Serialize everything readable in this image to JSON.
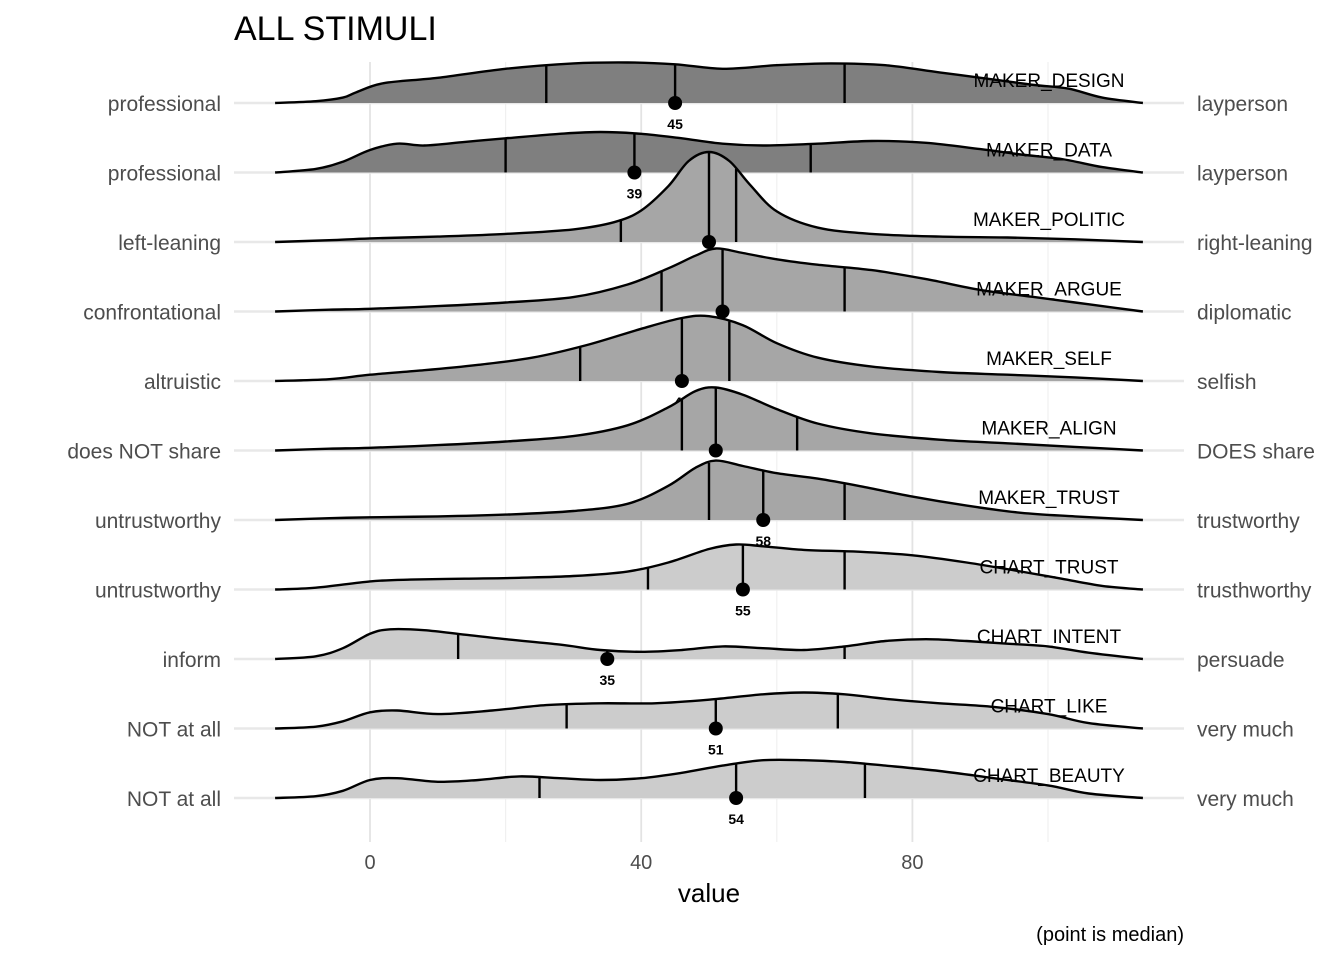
{
  "chart_data": {
    "type": "ridgeline",
    "title": "ALL STIMULI",
    "xlabel": "value",
    "caption": "(point is median)",
    "xlim": [
      -14,
      114
    ],
    "x_ticks": [
      0,
      40,
      80
    ],
    "x_grid_major": [
      0,
      40,
      80
    ],
    "x_grid_minor": [
      20,
      60,
      100
    ],
    "series": [
      {
        "name": "MAKER_DESIGN",
        "left_label": "professional",
        "right_label": "layperson",
        "median": 45,
        "quartiles": [
          26,
          45,
          70
        ],
        "fill": "#7f7f7f",
        "density": [
          [
            -14,
            0
          ],
          [
            -8,
            0.02
          ],
          [
            -4,
            0.06
          ],
          [
            -2,
            0.12
          ],
          [
            2,
            0.22
          ],
          [
            10,
            0.28
          ],
          [
            20,
            0.38
          ],
          [
            30,
            0.44
          ],
          [
            38,
            0.45
          ],
          [
            45,
            0.43
          ],
          [
            52,
            0.38
          ],
          [
            60,
            0.42
          ],
          [
            68,
            0.44
          ],
          [
            76,
            0.42
          ],
          [
            84,
            0.34
          ],
          [
            92,
            0.26
          ],
          [
            98,
            0.2
          ],
          [
            103,
            0.16
          ],
          [
            108,
            0.06
          ],
          [
            114,
            0
          ]
        ]
      },
      {
        "name": "MAKER_DATA",
        "left_label": "professional",
        "right_label": "layperson",
        "median": 39,
        "quartiles": [
          20,
          39,
          65
        ],
        "fill": "#7f7f7f",
        "density": [
          [
            -14,
            0
          ],
          [
            -8,
            0.04
          ],
          [
            -4,
            0.12
          ],
          [
            0,
            0.25
          ],
          [
            4,
            0.32
          ],
          [
            8,
            0.3
          ],
          [
            14,
            0.34
          ],
          [
            20,
            0.38
          ],
          [
            28,
            0.43
          ],
          [
            34,
            0.45
          ],
          [
            40,
            0.43
          ],
          [
            46,
            0.38
          ],
          [
            52,
            0.32
          ],
          [
            58,
            0.3
          ],
          [
            66,
            0.32
          ],
          [
            74,
            0.35
          ],
          [
            82,
            0.33
          ],
          [
            90,
            0.26
          ],
          [
            96,
            0.2
          ],
          [
            102,
            0.15
          ],
          [
            108,
            0.06
          ],
          [
            114,
            0
          ]
        ]
      },
      {
        "name": "MAKER_POLITIC",
        "left_label": "left-leaning",
        "right_label": "right-leaning",
        "median": 50,
        "quartiles": [
          37,
          50,
          54
        ],
        "fill": "#a6a6a6",
        "density": [
          [
            -14,
            0
          ],
          [
            -6,
            0.02
          ],
          [
            0,
            0.04
          ],
          [
            10,
            0.06
          ],
          [
            20,
            0.09
          ],
          [
            30,
            0.14
          ],
          [
            36,
            0.22
          ],
          [
            40,
            0.35
          ],
          [
            44,
            0.62
          ],
          [
            47,
            0.9
          ],
          [
            50,
            1.0
          ],
          [
            53,
            0.9
          ],
          [
            56,
            0.64
          ],
          [
            60,
            0.34
          ],
          [
            66,
            0.16
          ],
          [
            74,
            0.09
          ],
          [
            84,
            0.06
          ],
          [
            94,
            0.05
          ],
          [
            104,
            0.03
          ],
          [
            114,
            0
          ]
        ]
      },
      {
        "name": "MAKER_ARGUE",
        "left_label": "confrontational",
        "right_label": "diplomatic",
        "median": 52,
        "quartiles": [
          43,
          52,
          70
        ],
        "fill": "#a6a6a6",
        "density": [
          [
            -14,
            0
          ],
          [
            -6,
            0.02
          ],
          [
            0,
            0.03
          ],
          [
            10,
            0.06
          ],
          [
            20,
            0.1
          ],
          [
            30,
            0.16
          ],
          [
            38,
            0.3
          ],
          [
            44,
            0.48
          ],
          [
            48,
            0.62
          ],
          [
            51,
            0.7
          ],
          [
            55,
            0.65
          ],
          [
            60,
            0.58
          ],
          [
            66,
            0.52
          ],
          [
            74,
            0.46
          ],
          [
            82,
            0.36
          ],
          [
            90,
            0.24
          ],
          [
            98,
            0.16
          ],
          [
            104,
            0.1
          ],
          [
            110,
            0.04
          ],
          [
            114,
            0
          ]
        ]
      },
      {
        "name": "MAKER_SELF",
        "left_label": "altruistic",
        "right_label": "selfish",
        "median": 46,
        "quartiles": [
          31,
          46,
          53
        ],
        "fill": "#a6a6a6",
        "density": [
          [
            -14,
            0
          ],
          [
            -6,
            0.02
          ],
          [
            0,
            0.07
          ],
          [
            8,
            0.12
          ],
          [
            16,
            0.18
          ],
          [
            24,
            0.26
          ],
          [
            32,
            0.4
          ],
          [
            40,
            0.58
          ],
          [
            46,
            0.7
          ],
          [
            50,
            0.72
          ],
          [
            55,
            0.62
          ],
          [
            60,
            0.42
          ],
          [
            66,
            0.26
          ],
          [
            74,
            0.16
          ],
          [
            84,
            0.1
          ],
          [
            94,
            0.07
          ],
          [
            104,
            0.04
          ],
          [
            114,
            0
          ]
        ]
      },
      {
        "name": "MAKER_ALIGN",
        "left_label": "does NOT share",
        "right_label": "DOES share",
        "median": 51,
        "quartiles": [
          46,
          51,
          63
        ],
        "fill": "#a6a6a6",
        "density": [
          [
            -14,
            0
          ],
          [
            -6,
            0.02
          ],
          [
            0,
            0.03
          ],
          [
            10,
            0.06
          ],
          [
            20,
            0.1
          ],
          [
            30,
            0.16
          ],
          [
            38,
            0.28
          ],
          [
            44,
            0.48
          ],
          [
            48,
            0.66
          ],
          [
            51,
            0.7
          ],
          [
            55,
            0.62
          ],
          [
            60,
            0.46
          ],
          [
            66,
            0.3
          ],
          [
            74,
            0.19
          ],
          [
            84,
            0.12
          ],
          [
            94,
            0.08
          ],
          [
            104,
            0.04
          ],
          [
            114,
            0
          ]
        ]
      },
      {
        "name": "MAKER_TRUST",
        "left_label": "untrustworthy",
        "right_label": "trustworthy",
        "median": 58,
        "quartiles": [
          50,
          58,
          70
        ],
        "fill": "#a6a6a6",
        "density": [
          [
            -14,
            0
          ],
          [
            -6,
            0.02
          ],
          [
            0,
            0.03
          ],
          [
            10,
            0.04
          ],
          [
            20,
            0.06
          ],
          [
            30,
            0.1
          ],
          [
            38,
            0.18
          ],
          [
            44,
            0.38
          ],
          [
            48,
            0.58
          ],
          [
            51,
            0.66
          ],
          [
            55,
            0.6
          ],
          [
            60,
            0.52
          ],
          [
            66,
            0.46
          ],
          [
            72,
            0.38
          ],
          [
            80,
            0.26
          ],
          [
            88,
            0.16
          ],
          [
            96,
            0.08
          ],
          [
            104,
            0.04
          ],
          [
            114,
            0
          ]
        ]
      },
      {
        "name": "CHART_TRUST",
        "left_label": "untrustworthy",
        "right_label": "trusthworthy",
        "median": 55,
        "quartiles": [
          41,
          55,
          70
        ],
        "fill": "#cccccc",
        "density": [
          [
            -14,
            0
          ],
          [
            -8,
            0.02
          ],
          [
            0,
            0.09
          ],
          [
            6,
            0.11
          ],
          [
            14,
            0.12
          ],
          [
            22,
            0.13
          ],
          [
            30,
            0.15
          ],
          [
            38,
            0.2
          ],
          [
            44,
            0.3
          ],
          [
            50,
            0.45
          ],
          [
            54,
            0.5
          ],
          [
            58,
            0.48
          ],
          [
            64,
            0.44
          ],
          [
            72,
            0.42
          ],
          [
            80,
            0.38
          ],
          [
            88,
            0.3
          ],
          [
            96,
            0.2
          ],
          [
            102,
            0.12
          ],
          [
            108,
            0.04
          ],
          [
            114,
            0
          ]
        ]
      },
      {
        "name": "CHART_INTENT",
        "left_label": "inform",
        "right_label": "persuade",
        "median": 35,
        "quartiles": [
          13,
          35,
          70
        ],
        "fill": "#cccccc",
        "density": [
          [
            -14,
            0
          ],
          [
            -8,
            0.03
          ],
          [
            -4,
            0.12
          ],
          [
            0,
            0.28
          ],
          [
            3,
            0.33
          ],
          [
            8,
            0.32
          ],
          [
            14,
            0.27
          ],
          [
            20,
            0.22
          ],
          [
            28,
            0.16
          ],
          [
            34,
            0.1
          ],
          [
            40,
            0.08
          ],
          [
            46,
            0.1
          ],
          [
            52,
            0.14
          ],
          [
            58,
            0.12
          ],
          [
            64,
            0.1
          ],
          [
            70,
            0.14
          ],
          [
            76,
            0.2
          ],
          [
            82,
            0.22
          ],
          [
            88,
            0.2
          ],
          [
            94,
            0.17
          ],
          [
            100,
            0.14
          ],
          [
            106,
            0.07
          ],
          [
            114,
            0
          ]
        ]
      },
      {
        "name": "CHART_LIKE",
        "left_label": "NOT at all",
        "right_label": "very much",
        "median": 51,
        "quartiles": [
          29,
          51,
          69
        ],
        "fill": "#cccccc",
        "density": [
          [
            -14,
            0
          ],
          [
            -8,
            0.02
          ],
          [
            -4,
            0.08
          ],
          [
            0,
            0.18
          ],
          [
            4,
            0.2
          ],
          [
            10,
            0.16
          ],
          [
            18,
            0.2
          ],
          [
            26,
            0.26
          ],
          [
            34,
            0.28
          ],
          [
            42,
            0.28
          ],
          [
            50,
            0.32
          ],
          [
            58,
            0.38
          ],
          [
            64,
            0.4
          ],
          [
            70,
            0.38
          ],
          [
            76,
            0.33
          ],
          [
            84,
            0.28
          ],
          [
            92,
            0.24
          ],
          [
            100,
            0.16
          ],
          [
            106,
            0.06
          ],
          [
            114,
            0
          ]
        ]
      },
      {
        "name": "CHART_BEAUTY",
        "left_label": "NOT at all",
        "right_label": "very much",
        "median": 54,
        "quartiles": [
          25,
          54,
          73
        ],
        "fill": "#cccccc",
        "density": [
          [
            -14,
            0
          ],
          [
            -8,
            0.02
          ],
          [
            -4,
            0.08
          ],
          [
            0,
            0.2
          ],
          [
            4,
            0.22
          ],
          [
            10,
            0.18
          ],
          [
            16,
            0.2
          ],
          [
            22,
            0.24
          ],
          [
            28,
            0.22
          ],
          [
            34,
            0.2
          ],
          [
            40,
            0.22
          ],
          [
            46,
            0.28
          ],
          [
            52,
            0.36
          ],
          [
            58,
            0.42
          ],
          [
            64,
            0.42
          ],
          [
            70,
            0.4
          ],
          [
            76,
            0.36
          ],
          [
            84,
            0.3
          ],
          [
            92,
            0.22
          ],
          [
            100,
            0.14
          ],
          [
            106,
            0.05
          ],
          [
            114,
            0
          ]
        ]
      }
    ]
  }
}
